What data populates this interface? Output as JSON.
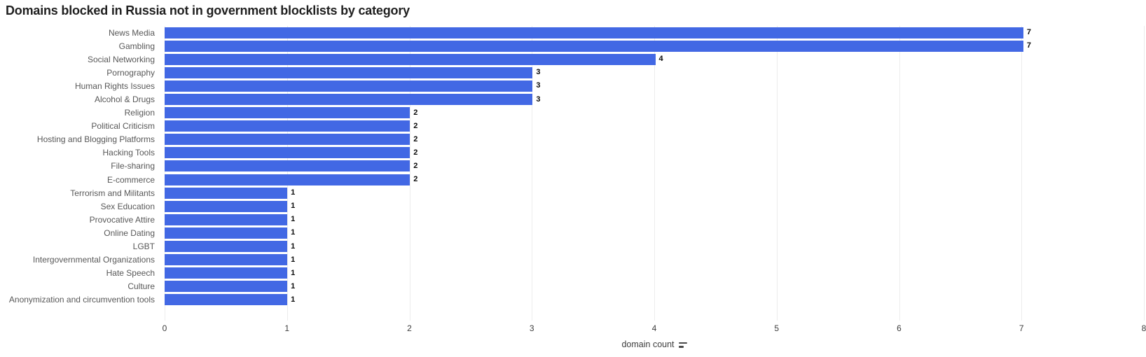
{
  "title": "Domains blocked in Russia not in government blocklists by category",
  "chart_data": {
    "type": "bar",
    "orientation": "horizontal",
    "title": "Domains blocked in Russia not in government blocklists by category",
    "categories": [
      "News Media",
      "Gambling",
      "Social Networking",
      "Pornography",
      "Human Rights Issues",
      "Alcohol & Drugs",
      "Religion",
      "Political Criticism",
      "Hosting and Blogging Platforms",
      "Hacking Tools",
      "File-sharing",
      "E-commerce",
      "Terrorism and Militants",
      "Sex Education",
      "Provocative Attire",
      "Online Dating",
      "LGBT",
      "Intergovernmental Organizations",
      "Hate Speech",
      "Culture",
      "Anonymization and circumvention tools"
    ],
    "values": [
      7,
      7,
      4,
      3,
      3,
      3,
      2,
      2,
      2,
      2,
      2,
      2,
      1,
      1,
      1,
      1,
      1,
      1,
      1,
      1,
      1
    ],
    "xlabel": "domain count",
    "ylabel": "",
    "xlim": [
      0,
      8
    ],
    "xticks": [
      0,
      1,
      2,
      3,
      4,
      5,
      6,
      7,
      8
    ],
    "grid": true,
    "legend": false,
    "value_labels": true,
    "bar_color": "#4268e4"
  },
  "colors": {
    "bar": "#4268e4",
    "grid": "#ececec",
    "title_text": "#1f1f1f",
    "category_text": "#585858",
    "tick_text": "#3d3d3d",
    "value_text": "#0a0a0a",
    "background": "#ffffff"
  },
  "icons": {
    "axis_sort_icon": "sort-descending-icon"
  }
}
